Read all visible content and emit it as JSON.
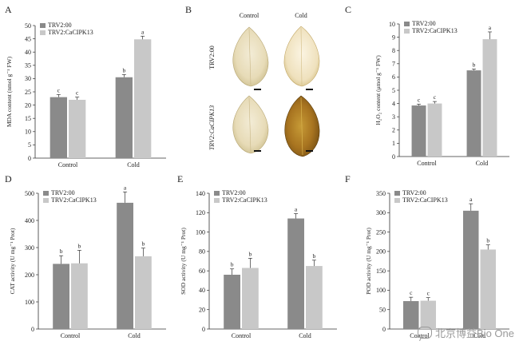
{
  "legend": {
    "control_series": "TRV2:00",
    "treated_series": "TRV2:CaCIPK13"
  },
  "panels": {
    "A": {
      "letter": "A"
    },
    "B": {
      "letter": "B",
      "col_control": "Control",
      "col_cold": "Cold",
      "row_1": "TRV2:00",
      "row_2": "TRV2:CaCIPK13"
    },
    "C": {
      "letter": "C"
    },
    "D": {
      "letter": "D"
    },
    "E": {
      "letter": "E"
    },
    "F": {
      "letter": "F"
    }
  },
  "watermark": {
    "text": "北京博益Bio One"
  },
  "colors": {
    "series_dark": "#8a8a8a",
    "series_light": "#c8c8c8"
  },
  "chart_data": [
    {
      "id": "A",
      "type": "bar",
      "categories": [
        "Control",
        "Cold"
      ],
      "ylabel": "MDA content (nmol g⁻¹ FW)",
      "ylim": [
        0,
        50
      ],
      "ticks": [
        0,
        5,
        10,
        15,
        20,
        25,
        30,
        35,
        40,
        45,
        50
      ],
      "series": [
        {
          "name": "TRV2:00",
          "values": [
            23.0,
            30.5
          ],
          "errors": [
            1.0,
            1.0
          ],
          "letters": [
            "c",
            "b"
          ]
        },
        {
          "name": "TRV2:CaCIPK13",
          "values": [
            22.0,
            44.8
          ],
          "errors": [
            1.0,
            1.2
          ],
          "letters": [
            "c",
            "a"
          ]
        }
      ]
    },
    {
      "id": "C",
      "type": "bar",
      "categories": [
        "Control",
        "Cold"
      ],
      "ylabel": "H₂O₂ content (μmol g⁻¹ FW)",
      "ylim": [
        0,
        10
      ],
      "ticks": [
        0,
        1,
        2,
        3,
        4,
        5,
        6,
        7,
        8,
        9,
        10
      ],
      "series": [
        {
          "name": "TRV2:00",
          "values": [
            3.85,
            6.5
          ],
          "errors": [
            0.1,
            0.1
          ],
          "letters": [
            "c",
            "b"
          ]
        },
        {
          "name": "TRV2:CaCIPK13",
          "values": [
            4.0,
            8.85
          ],
          "errors": [
            0.15,
            0.55
          ],
          "letters": [
            "c",
            "a"
          ]
        }
      ]
    },
    {
      "id": "D",
      "type": "bar",
      "categories": [
        "Control",
        "Cold"
      ],
      "ylabel": "CAT activity (U mg⁻¹ Prot)",
      "ylim": [
        0,
        500
      ],
      "ticks": [
        0,
        100,
        200,
        300,
        400,
        500
      ],
      "series": [
        {
          "name": "TRV2:00",
          "values": [
            240,
            465
          ],
          "errors": [
            30,
            40
          ],
          "letters": [
            "b",
            "a"
          ]
        },
        {
          "name": "TRV2:CaCIPK13",
          "values": [
            242,
            268
          ],
          "errors": [
            48,
            30
          ],
          "letters": [
            "b",
            "b"
          ]
        }
      ]
    },
    {
      "id": "E",
      "type": "bar",
      "categories": [
        "Control",
        "Cold"
      ],
      "ylabel": "SOD activity (U mg⁻¹ Prot)",
      "ylim": [
        0,
        140
      ],
      "ticks": [
        0,
        20,
        40,
        60,
        80,
        100,
        120,
        140
      ],
      "series": [
        {
          "name": "TRV2:00",
          "values": [
            56,
            114
          ],
          "errors": [
            6,
            5
          ],
          "letters": [
            "b",
            "a"
          ]
        },
        {
          "name": "TRV2:CaCIPK13",
          "values": [
            63,
            65
          ],
          "errors": [
            10,
            6
          ],
          "letters": [
            "b",
            "b"
          ]
        }
      ]
    },
    {
      "id": "F",
      "type": "bar",
      "categories": [
        "Control",
        "Cold"
      ],
      "ylabel": "POD activity (U mg⁻¹ Prot)",
      "ylim": [
        0,
        350
      ],
      "ticks": [
        0,
        50,
        100,
        150,
        200,
        250,
        300,
        350
      ],
      "series": [
        {
          "name": "TRV2:00",
          "values": [
            72,
            305
          ],
          "errors": [
            10,
            18
          ],
          "letters": [
            "c",
            "a"
          ]
        },
        {
          "name": "TRV2:CaCIPK13",
          "values": [
            73,
            205
          ],
          "errors": [
            8,
            12
          ],
          "letters": [
            "c",
            "b"
          ]
        }
      ]
    }
  ]
}
